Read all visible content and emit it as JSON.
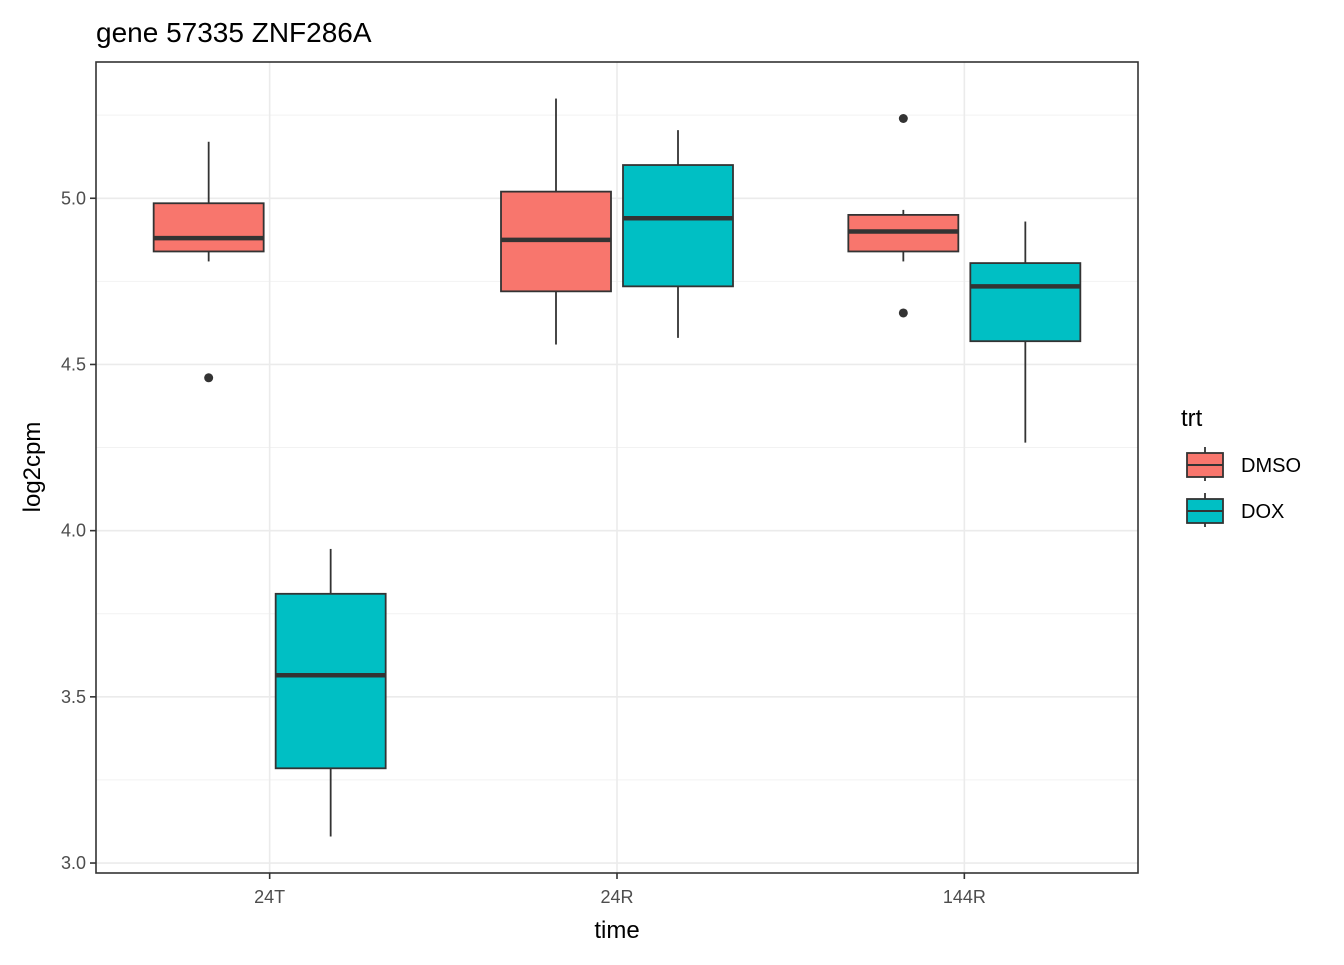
{
  "chart_data": {
    "type": "boxplot",
    "title": "gene 57335 ZNF286A",
    "xlabel": "time",
    "ylabel": "log2cpm",
    "categories": [
      "24T",
      "24R",
      "144R"
    ],
    "ylim": [
      2.97,
      5.41
    ],
    "yticks": [
      3.0,
      3.5,
      4.0,
      4.5,
      5.0
    ],
    "ytick_labels": [
      "3.0",
      "3.5",
      "4.0",
      "4.5",
      "5.0"
    ],
    "grid": true,
    "legend": {
      "title": "trt",
      "position": "right",
      "entries": [
        {
          "name": "DMSO",
          "color": "#F8766D"
        },
        {
          "name": "DOX",
          "color": "#00BFC4"
        }
      ]
    },
    "series": [
      {
        "name": "DMSO",
        "color": "#F8766D",
        "boxes": [
          {
            "category": "24T",
            "min": 4.81,
            "q1": 4.84,
            "median": 4.88,
            "q3": 4.985,
            "max": 5.17,
            "outliers": [
              4.46
            ]
          },
          {
            "category": "24R",
            "min": 4.56,
            "q1": 4.72,
            "median": 4.875,
            "q3": 5.02,
            "max": 5.3,
            "outliers": []
          },
          {
            "category": "144R",
            "min": 4.81,
            "q1": 4.84,
            "median": 4.9,
            "q3": 4.95,
            "max": 4.965,
            "outliers": [
              5.24,
              4.655
            ]
          }
        ]
      },
      {
        "name": "DOX",
        "color": "#00BFC4",
        "boxes": [
          {
            "category": "24T",
            "min": 3.08,
            "q1": 3.285,
            "median": 3.565,
            "q3": 3.81,
            "max": 3.945,
            "outliers": []
          },
          {
            "category": "24R",
            "min": 4.58,
            "q1": 4.735,
            "median": 4.94,
            "q3": 5.1,
            "max": 5.205,
            "outliers": []
          },
          {
            "category": "144R",
            "min": 4.265,
            "q1": 4.57,
            "median": 4.735,
            "q3": 4.805,
            "max": 4.93,
            "outliers": []
          }
        ]
      }
    ]
  }
}
